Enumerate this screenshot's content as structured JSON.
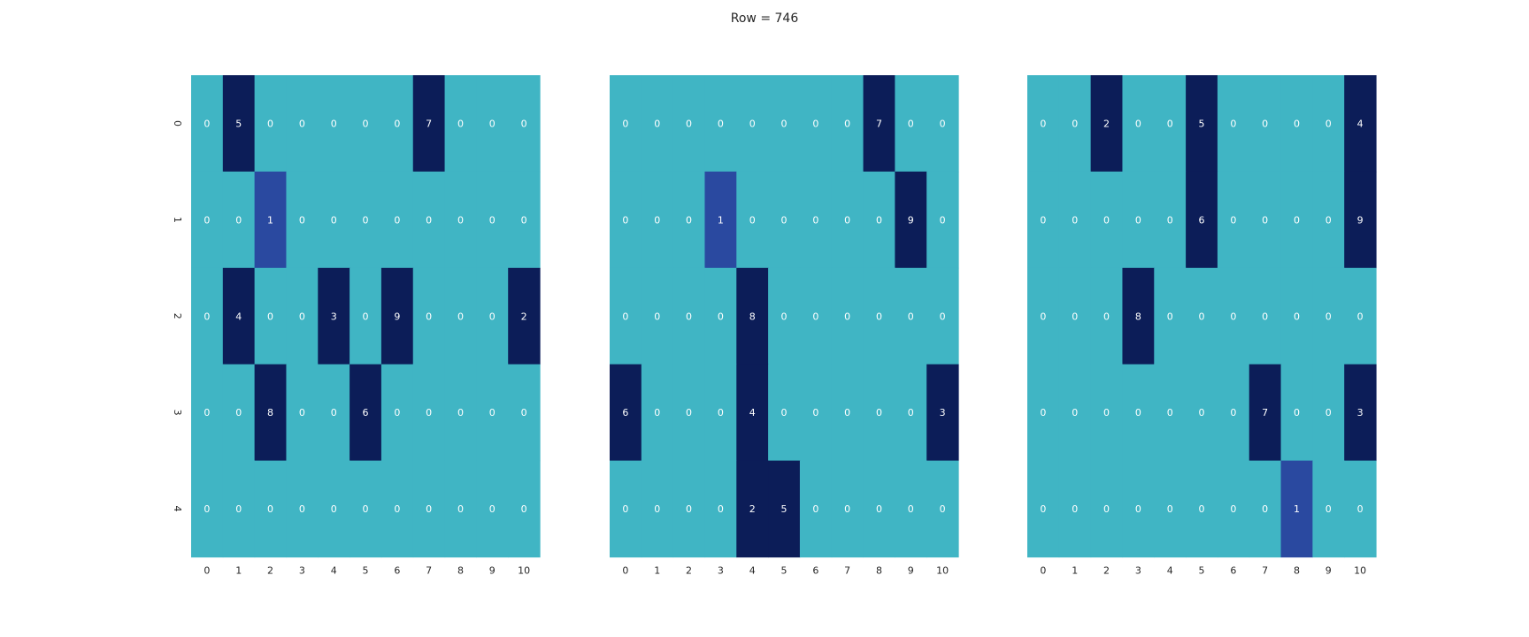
{
  "chart_data": {
    "type": "heatmap",
    "title": "Row = 746",
    "colors": {
      "zero": "#40b5c4",
      "one": "#2a49a0",
      "high": "#0c1d58",
      "label": "#ffffff"
    },
    "panels": [
      {
        "name": "heatmap-left",
        "x_ticks": [
          "0",
          "1",
          "2",
          "3",
          "4",
          "5",
          "6",
          "7",
          "8",
          "9",
          "10"
        ],
        "y_ticks": [
          "0",
          "1",
          "2",
          "3",
          "4"
        ],
        "values": [
          [
            0,
            5,
            0,
            0,
            0,
            0,
            0,
            7,
            0,
            0,
            0
          ],
          [
            0,
            0,
            1,
            0,
            0,
            0,
            0,
            0,
            0,
            0,
            0
          ],
          [
            0,
            4,
            0,
            0,
            3,
            0,
            9,
            0,
            0,
            0,
            2
          ],
          [
            0,
            0,
            8,
            0,
            0,
            6,
            0,
            0,
            0,
            0,
            0
          ],
          [
            0,
            0,
            0,
            0,
            0,
            0,
            0,
            0,
            0,
            0,
            0
          ]
        ]
      },
      {
        "name": "heatmap-middle",
        "x_ticks": [
          "0",
          "1",
          "2",
          "3",
          "4",
          "5",
          "6",
          "7",
          "8",
          "9",
          "10"
        ],
        "y_ticks": [],
        "values": [
          [
            0,
            0,
            0,
            0,
            0,
            0,
            0,
            0,
            7,
            0,
            0
          ],
          [
            0,
            0,
            0,
            1,
            0,
            0,
            0,
            0,
            0,
            9,
            0
          ],
          [
            0,
            0,
            0,
            0,
            8,
            0,
            0,
            0,
            0,
            0,
            0
          ],
          [
            6,
            0,
            0,
            0,
            4,
            0,
            0,
            0,
            0,
            0,
            3
          ],
          [
            0,
            0,
            0,
            0,
            2,
            5,
            0,
            0,
            0,
            0,
            0
          ]
        ]
      },
      {
        "name": "heatmap-right",
        "x_ticks": [
          "0",
          "1",
          "2",
          "3",
          "4",
          "5",
          "6",
          "7",
          "8",
          "9",
          "10"
        ],
        "y_ticks": [],
        "values": [
          [
            0,
            0,
            2,
            0,
            0,
            5,
            0,
            0,
            0,
            0,
            4
          ],
          [
            0,
            0,
            0,
            0,
            0,
            6,
            0,
            0,
            0,
            0,
            9
          ],
          [
            0,
            0,
            0,
            8,
            0,
            0,
            0,
            0,
            0,
            0,
            0
          ],
          [
            0,
            0,
            0,
            0,
            0,
            0,
            0,
            7,
            0,
            0,
            3
          ],
          [
            0,
            0,
            0,
            0,
            0,
            0,
            0,
            0,
            1,
            0,
            0
          ]
        ]
      }
    ]
  }
}
